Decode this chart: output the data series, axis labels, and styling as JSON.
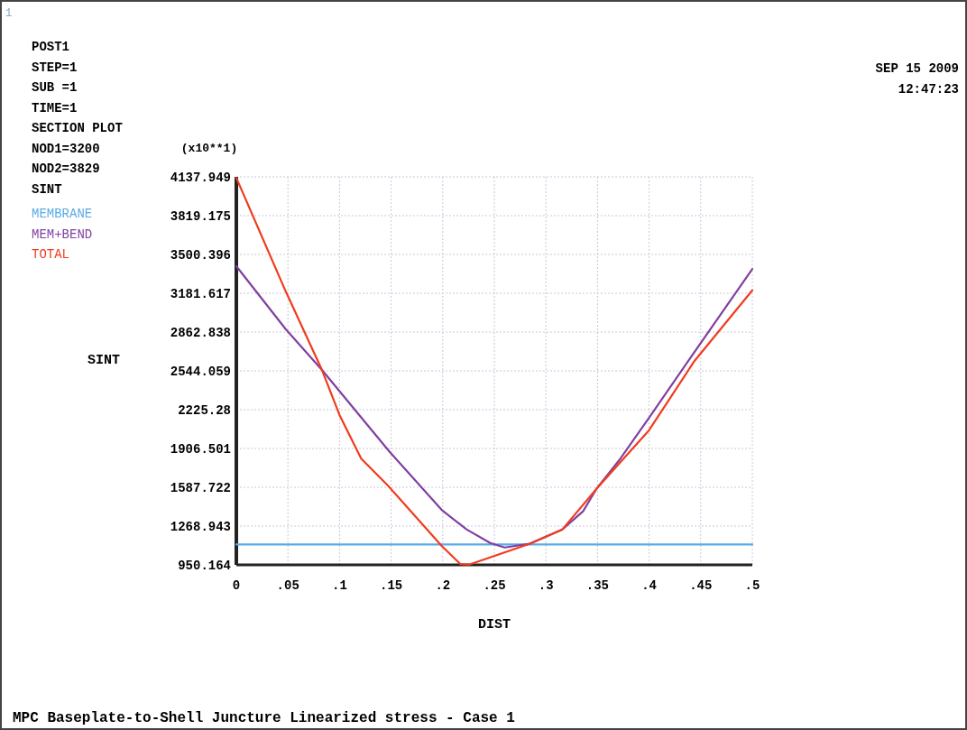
{
  "chart_data": {
    "type": "line",
    "xlabel": "DIST",
    "ylabel": "SINT",
    "legend": "left",
    "grid": true,
    "title": "MPC Baseplate-to-Shell Juncture Linearized stress - Case 1",
    "annotations": [
      "POST1",
      "STEP=1",
      "SUB =1",
      "TIME=1",
      "SECTION PLOT",
      "NOD1=3200",
      "NOD2=3829",
      "SINT",
      "1",
      "SEP 15 2009",
      "12:47:23",
      "(x10**1)"
    ],
    "xlim": [
      0,
      0.5
    ],
    "xticks": [
      0,
      {
        "value": 0.05,
        "label": ".05"
      },
      {
        "value": 0.1,
        "label": ".1"
      },
      {
        "value": 0.15,
        "label": ".15"
      },
      {
        "value": 0.2,
        "label": ".2"
      },
      {
        "value": 0.25,
        "label": ".25"
      },
      {
        "value": 0.3,
        "label": ".3"
      },
      {
        "value": 0.35,
        "label": ".35"
      },
      {
        "value": 0.4,
        "label": ".4"
      },
      {
        "value": 0.45,
        "label": ".45"
      },
      {
        "value": 0.5,
        "label": ".5"
      }
    ],
    "ylim": [
      950.164,
      4137.949
    ],
    "yticks": [
      950.164,
      1268.943,
      1587.722,
      1906.501,
      2225.28,
      2544.059,
      2862.838,
      3181.617,
      3500.396,
      3819.175,
      4137.949
    ],
    "series": [
      {
        "name": "MEMBRANE",
        "color": "#5aaae6",
        "x": [
          0,
          0.5
        ],
        "values": [
          1118,
          1118
        ]
      },
      {
        "name": "MEM+BEND",
        "color": "#8040a0",
        "x": [
          0,
          0.048,
          0.083,
          0.148,
          0.199,
          0.223,
          0.246,
          0.26,
          0.284,
          0.316,
          0.336,
          0.349,
          0.371,
          0.4,
          0.438,
          0.5
        ],
        "values": [
          3404,
          2885,
          2551,
          1884,
          1402,
          1242,
          1130,
          1093,
          1123,
          1242,
          1390,
          1575,
          1810,
          2159,
          2626,
          3380
        ]
      },
      {
        "name": "TOTAL",
        "color": "#f03c1e",
        "x": [
          0,
          0.048,
          0.083,
          0.1,
          0.121,
          0.147,
          0.199,
          0.217,
          0.2255,
          0.284,
          0.316,
          0.349,
          0.4,
          0.444,
          0.5
        ],
        "values": [
          4130,
          3194,
          2551,
          2181,
          1823,
          1600,
          1106,
          957,
          952,
          1123,
          1242,
          1575,
          2057,
          2626,
          3206
        ]
      }
    ]
  }
}
